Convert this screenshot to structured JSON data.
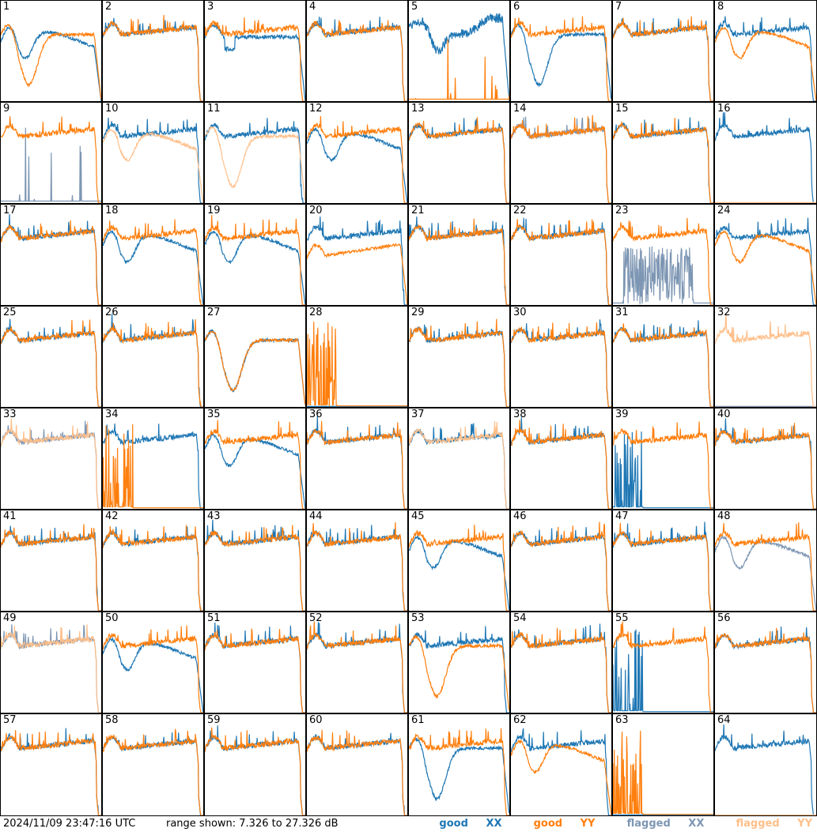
{
  "chart_data": {
    "type": "line",
    "description_kind": "grid of 64 small-multiple spectra",
    "ylim": [
      7.326,
      27.326
    ],
    "units": "dB",
    "series_colors": {
      "good_xx": "#1f77b4",
      "good_yy": "#ff7f0e",
      "flagged_xx": "#7d96b3",
      "flagged_yy": "#ffbf8a"
    },
    "panels": [
      {
        "label": "1",
        "xx": "dip_shallow",
        "yy": "dip_deep",
        "flag_x": false,
        "flag_y": false
      },
      {
        "label": "2",
        "xx": "flat",
        "yy": "flat",
        "flag_x": false,
        "flag_y": false
      },
      {
        "label": "3",
        "xx": "flat_dip",
        "yy": "flat",
        "flag_x": false,
        "flag_y": false
      },
      {
        "label": "4",
        "xx": "flat",
        "yy": "flat",
        "flag_x": false,
        "flag_y": false
      },
      {
        "label": "5",
        "xx": "noisy_dip",
        "yy": "spikes_low",
        "flag_x": false,
        "flag_y": false
      },
      {
        "label": "6",
        "xx": "dip_deep",
        "yy": "flat",
        "flag_x": false,
        "flag_y": false
      },
      {
        "label": "7",
        "xx": "flat",
        "yy": "flat",
        "flag_x": false,
        "flag_y": false
      },
      {
        "label": "8",
        "xx": "flat",
        "yy": "dip_shallow",
        "flag_x": false,
        "flag_y": false
      },
      {
        "label": "9",
        "xx": "spikes_low",
        "yy": "flat",
        "flag_x": true,
        "flag_y": false
      },
      {
        "label": "10",
        "xx": "flat",
        "yy": "dip_shallow",
        "flag_x": false,
        "flag_y": true
      },
      {
        "label": "11",
        "xx": "flat",
        "yy": "dip_deep",
        "flag_x": false,
        "flag_y": true
      },
      {
        "label": "12",
        "xx": "dip_shallow",
        "yy": "flat",
        "flag_x": false,
        "flag_y": false
      },
      {
        "label": "13",
        "xx": "flat",
        "yy": "flat",
        "flag_x": false,
        "flag_y": false
      },
      {
        "label": "14",
        "xx": "flat",
        "yy": "flat",
        "flag_x": true,
        "flag_y": false
      },
      {
        "label": "15",
        "xx": "flat",
        "yy": "flat",
        "flag_x": false,
        "flag_y": false
      },
      {
        "label": "16",
        "xx": "flat",
        "yy": "dead",
        "flag_x": false,
        "flag_y": true
      },
      {
        "label": "17",
        "xx": "flat",
        "yy": "flat",
        "flag_x": false,
        "flag_y": false
      },
      {
        "label": "18",
        "xx": "dip_shallow",
        "yy": "flat",
        "flag_x": false,
        "flag_y": false
      },
      {
        "label": "19",
        "xx": "dip_shallow",
        "yy": "flat",
        "flag_x": false,
        "flag_y": false
      },
      {
        "label": "20",
        "xx": "flat",
        "yy": "flat_low",
        "flag_x": false,
        "flag_y": false
      },
      {
        "label": "21",
        "xx": "flat",
        "yy": "flat",
        "flag_x": false,
        "flag_y": false
      },
      {
        "label": "22",
        "xx": "flat",
        "yy": "flat",
        "flag_x": false,
        "flag_y": false
      },
      {
        "label": "23",
        "xx": "spikes_mid",
        "yy": "flat",
        "flag_x": true,
        "flag_y": false
      },
      {
        "label": "24",
        "xx": "flat",
        "yy": "dip_shallow",
        "flag_x": false,
        "flag_y": false
      },
      {
        "label": "25",
        "xx": "flat",
        "yy": "flat",
        "flag_x": false,
        "flag_y": false
      },
      {
        "label": "26",
        "xx": "flat",
        "yy": "flat",
        "flag_x": false,
        "flag_y": false
      },
      {
        "label": "27",
        "xx": "dip_deep",
        "yy": "dip_deep",
        "flag_x": false,
        "flag_y": false
      },
      {
        "label": "28",
        "xx": "dead",
        "yy": "spikes_left",
        "flag_x": false,
        "flag_y": false
      },
      {
        "label": "29",
        "xx": "flat",
        "yy": "flat",
        "flag_x": false,
        "flag_y": false
      },
      {
        "label": "30",
        "xx": "flat",
        "yy": "flat",
        "flag_x": false,
        "flag_y": false
      },
      {
        "label": "31",
        "xx": "flat",
        "yy": "flat",
        "flag_x": false,
        "flag_y": false
      },
      {
        "label": "32",
        "xx": "dead",
        "yy": "flat",
        "flag_x": true,
        "flag_y": true
      },
      {
        "label": "33",
        "xx": "flat",
        "yy": "flat",
        "flag_x": true,
        "flag_y": true
      },
      {
        "label": "34",
        "xx": "flat",
        "yy": "spikes_left",
        "flag_x": false,
        "flag_y": false
      },
      {
        "label": "35",
        "xx": "dip_shallow",
        "yy": "flat",
        "flag_x": false,
        "flag_y": false
      },
      {
        "label": "36",
        "xx": "flat",
        "yy": "flat",
        "flag_x": false,
        "flag_y": false
      },
      {
        "label": "37",
        "xx": "flat",
        "yy": "flat",
        "flag_x": false,
        "flag_y": true
      },
      {
        "label": "38",
        "xx": "flat",
        "yy": "flat",
        "flag_x": false,
        "flag_y": false
      },
      {
        "label": "39",
        "xx": "spikes_left",
        "yy": "flat",
        "flag_x": false,
        "flag_y": false
      },
      {
        "label": "40",
        "xx": "flat",
        "yy": "flat",
        "flag_x": false,
        "flag_y": false
      },
      {
        "label": "41",
        "xx": "flat",
        "yy": "flat",
        "flag_x": false,
        "flag_y": false
      },
      {
        "label": "42",
        "xx": "flat",
        "yy": "flat",
        "flag_x": false,
        "flag_y": false
      },
      {
        "label": "43",
        "xx": "flat",
        "yy": "flat",
        "flag_x": false,
        "flag_y": false
      },
      {
        "label": "44",
        "xx": "flat",
        "yy": "flat",
        "flag_x": false,
        "flag_y": false
      },
      {
        "label": "45",
        "xx": "dip_shallow",
        "yy": "flat",
        "flag_x": false,
        "flag_y": false
      },
      {
        "label": "46",
        "xx": "flat",
        "yy": "flat",
        "flag_x": false,
        "flag_y": false
      },
      {
        "label": "47",
        "xx": "flat",
        "yy": "flat",
        "flag_x": false,
        "flag_y": false
      },
      {
        "label": "48",
        "xx": "dip_shallow",
        "yy": "flat",
        "flag_x": true,
        "flag_y": false
      },
      {
        "label": "49",
        "xx": "flat",
        "yy": "flat",
        "flag_x": true,
        "flag_y": true
      },
      {
        "label": "50",
        "xx": "dip_shallow",
        "yy": "flat",
        "flag_x": false,
        "flag_y": false
      },
      {
        "label": "51",
        "xx": "flat",
        "yy": "flat",
        "flag_x": false,
        "flag_y": false
      },
      {
        "label": "52",
        "xx": "flat",
        "yy": "flat",
        "flag_x": false,
        "flag_y": false
      },
      {
        "label": "53",
        "xx": "flat",
        "yy": "dip_deep",
        "flag_x": false,
        "flag_y": false
      },
      {
        "label": "54",
        "xx": "flat",
        "yy": "flat",
        "flag_x": false,
        "flag_y": false
      },
      {
        "label": "55",
        "xx": "spikes_left",
        "yy": "flat",
        "flag_x": false,
        "flag_y": false
      },
      {
        "label": "56",
        "xx": "flat",
        "yy": "flat",
        "flag_x": false,
        "flag_y": false
      },
      {
        "label": "57",
        "xx": "flat",
        "yy": "flat",
        "flag_x": false,
        "flag_y": false
      },
      {
        "label": "58",
        "xx": "flat",
        "yy": "flat",
        "flag_x": false,
        "flag_y": false
      },
      {
        "label": "59",
        "xx": "flat",
        "yy": "flat",
        "flag_x": false,
        "flag_y": false
      },
      {
        "label": "60",
        "xx": "flat",
        "yy": "flat",
        "flag_x": false,
        "flag_y": false
      },
      {
        "label": "61",
        "xx": "dip_deep",
        "yy": "flat",
        "flag_x": false,
        "flag_y": false
      },
      {
        "label": "62",
        "xx": "flat",
        "yy": "dip_shallow",
        "flag_x": false,
        "flag_y": false
      },
      {
        "label": "63",
        "xx": "dead",
        "yy": "spikes_left",
        "flag_x": false,
        "flag_y": false
      },
      {
        "label": "64",
        "xx": "flat",
        "yy": "dead",
        "flag_x": false,
        "flag_y": true
      }
    ]
  },
  "footer": {
    "timestamp": "2024/11/09 23:47:16 UTC",
    "range_text": "range shown: 7.326 to 27.326 dB",
    "legend": {
      "good_word": "good",
      "flagged_word": "flagged",
      "xx": "XX",
      "yy": "YY"
    }
  }
}
